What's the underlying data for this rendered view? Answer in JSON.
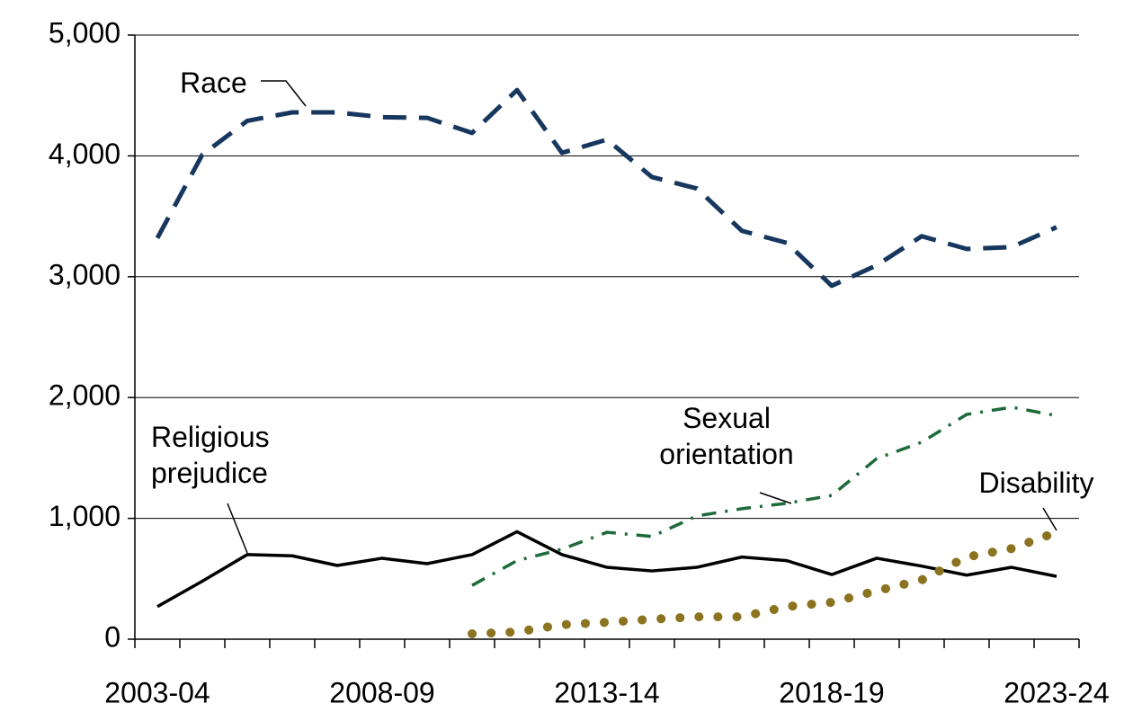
{
  "chart_data": {
    "type": "line",
    "categories": [
      "2003-04",
      null,
      null,
      null,
      null,
      "2008-09",
      null,
      null,
      null,
      null,
      "2013-14",
      null,
      null,
      null,
      null,
      "2018-19",
      null,
      null,
      null,
      null,
      "2023-24"
    ],
    "series": [
      {
        "name": "Race",
        "color": "#17375e",
        "style": "dashed",
        "values": [
          3320,
          4010,
          4290,
          4360,
          4360,
          4320,
          4315,
          4190,
          4545,
          4025,
          4135,
          3825,
          3730,
          3380,
          3280,
          2925,
          3095,
          3335,
          3230,
          3245,
          3410
        ]
      },
      {
        "name": "Religious prejudice",
        "color": "#000000",
        "style": "solid",
        "values": [
          270,
          480,
          700,
          690,
          610,
          670,
          625,
          700,
          890,
          700,
          595,
          565,
          595,
          680,
          650,
          535,
          670,
          605,
          530,
          595,
          520
        ]
      },
      {
        "name": "Sexual orientation",
        "color": "#1e6b3a",
        "style": "dashdot",
        "values": [
          null,
          null,
          null,
          null,
          null,
          null,
          null,
          445,
          650,
          745,
          885,
          850,
          1020,
          1080,
          1125,
          1190,
          1495,
          1630,
          1860,
          1920,
          1850
        ]
      },
      {
        "name": "Disability",
        "color": "#8b7320",
        "style": "dotted",
        "values": [
          null,
          null,
          null,
          null,
          null,
          null,
          null,
          45,
          60,
          120,
          140,
          165,
          185,
          185,
          270,
          305,
          400,
          490,
          680,
          750,
          885
        ]
      }
    ],
    "ylim": [
      0,
      5000
    ],
    "yticks": [
      0,
      {
        "value": 1000,
        "label": "1,000"
      },
      {
        "value": 2000,
        "label": "2,000"
      },
      {
        "value": 3000,
        "label": "3,000"
      },
      {
        "value": 4000,
        "label": "4,000"
      },
      {
        "value": 5000,
        "label": "5,000"
      }
    ],
    "grid": true
  }
}
